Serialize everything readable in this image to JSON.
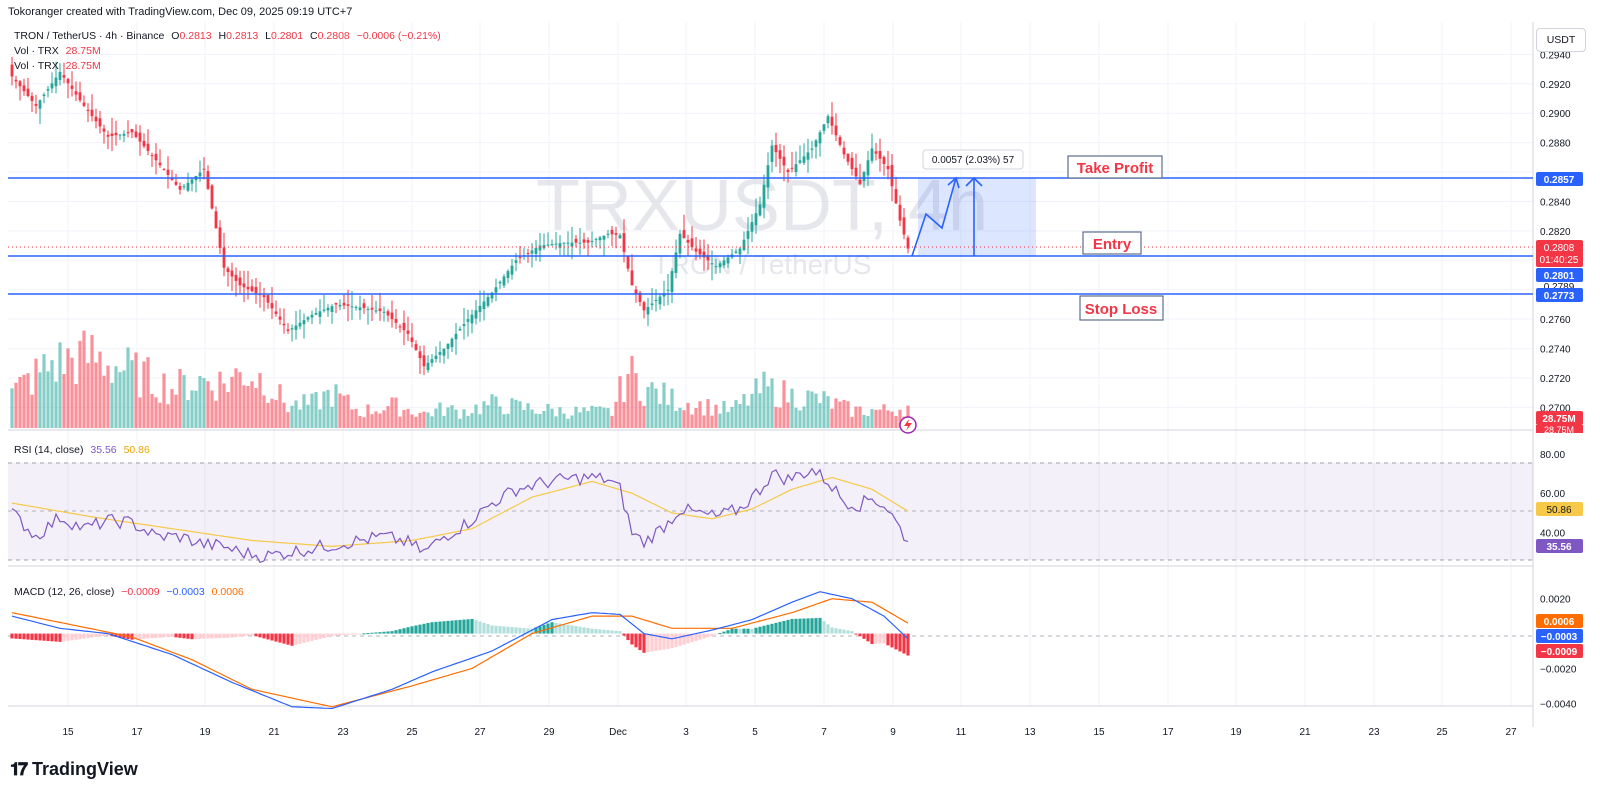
{
  "header": {
    "creator_text": "Tokoranger created with TradingView.com, Dec 09, 2025 09:19 UTC+7",
    "symbol_line": "TRON / TetherUS · 4h · Binance",
    "ohlc": {
      "o_label": "O",
      "o": "0.2813",
      "h_label": "H",
      "h": "0.2813",
      "l_label": "L",
      "l": "0.2801",
      "c_label": "C",
      "c": "0.2808",
      "change": "−0.0006 (−0.21%)"
    },
    "vol_line_1": "Vol · TRX",
    "vol_value_1": "28.75M",
    "vol_line_2": "Vol · TRX",
    "vol_value_2": "28.75M",
    "unit": "USDT"
  },
  "watermark": {
    "ticker": "TRXUSDT, 4h",
    "name": "TRON / TetherUS"
  },
  "annotations": {
    "measure": "0.0057 (2.03%) 57",
    "take_profit": "Take Profit",
    "entry": "Entry",
    "stop_loss": "Stop Loss"
  },
  "price_badges": {
    "take_profit": "0.2857",
    "last_price": "0.2808",
    "countdown": "01:40:25",
    "entry": "0.2801",
    "hidden": "0.2789",
    "stop_loss": "0.2773",
    "vol_1": "28.75M",
    "vol_2": "28.75M"
  },
  "rsi": {
    "label": "RSI (14, close)",
    "value": "35.56",
    "ma_value": "50.86",
    "axis": [
      "80.00",
      "60.00",
      "40.00"
    ]
  },
  "macd": {
    "label": "MACD (12, 26, close)",
    "hist": "−0.0009",
    "macd": "−0.0003",
    "signal": "0.0006",
    "axis": [
      "0.0020",
      "−0.0020",
      "−0.0040"
    ]
  },
  "branding": {
    "logo_text": "TradingView"
  },
  "colors": {
    "up": "#26a69a",
    "down": "#f23645",
    "line_blue": "#2962ff",
    "rsi_purple": "#7e57c2",
    "rsi_ma": "#f7c948",
    "macd_line": "#2962ff",
    "signal_line": "#ff6d00"
  },
  "chart_data": {
    "type": "candlestick",
    "x_axis_labels": [
      "15",
      "17",
      "19",
      "21",
      "23",
      "25",
      "27",
      "29",
      "Dec",
      "3",
      "5",
      "7",
      "9",
      "11",
      "13",
      "15",
      "17",
      "19",
      "21",
      "23",
      "25",
      "27"
    ],
    "y_axis_labels": [
      "0.2940",
      "0.2920",
      "0.2900",
      "0.2880",
      "0.2840",
      "0.2820",
      "0.2760",
      "0.2740",
      "0.2720",
      "0.2700"
    ],
    "ylim": [
      0.2686,
      0.2962
    ],
    "levels": {
      "take_profit": 0.2857,
      "entry": 0.2801,
      "stop_loss": 0.2773,
      "last": 0.2808
    },
    "anchors": [
      [
        0,
        0.2925
      ],
      [
        6,
        0.2905
      ],
      [
        12,
        0.2928
      ],
      [
        18,
        0.2905
      ],
      [
        24,
        0.2884
      ],
      [
        30,
        0.2887
      ],
      [
        36,
        0.2868
      ],
      [
        42,
        0.2848
      ],
      [
        48,
        0.2862
      ],
      [
        53,
        0.2795
      ],
      [
        57,
        0.2783
      ],
      [
        63,
        0.2775
      ],
      [
        69,
        0.2752
      ],
      [
        75,
        0.2763
      ],
      [
        81,
        0.277
      ],
      [
        87,
        0.2768
      ],
      [
        93,
        0.2765
      ],
      [
        99,
        0.275
      ],
      [
        103,
        0.2728
      ],
      [
        108,
        0.274
      ],
      [
        114,
        0.276
      ],
      [
        120,
        0.2778
      ],
      [
        126,
        0.28
      ],
      [
        132,
        0.281
      ],
      [
        138,
        0.2812
      ],
      [
        144,
        0.2812
      ],
      [
        149,
        0.2818
      ],
      [
        152,
        0.2817
      ],
      [
        155,
        0.2783
      ],
      [
        158,
        0.2766
      ],
      [
        164,
        0.278
      ],
      [
        167,
        0.2818
      ],
      [
        171,
        0.2806
      ],
      [
        176,
        0.2796
      ],
      [
        182,
        0.2808
      ],
      [
        187,
        0.2838
      ],
      [
        190,
        0.2878
      ],
      [
        194,
        0.286
      ],
      [
        200,
        0.2876
      ],
      [
        204,
        0.2898
      ],
      [
        208,
        0.2872
      ],
      [
        212,
        0.2852
      ],
      [
        215,
        0.2876
      ],
      [
        219,
        0.2862
      ],
      [
        222,
        0.2827
      ],
      [
        224,
        0.2808
      ]
    ],
    "volume": {
      "ylim": [
        0,
        80
      ],
      "anchors": [
        [
          0,
          22
        ],
        [
          10,
          40
        ],
        [
          20,
          45
        ],
        [
          30,
          35
        ],
        [
          35,
          30
        ],
        [
          40,
          25
        ],
        [
          48,
          30
        ],
        [
          53,
          28
        ],
        [
          58,
          35
        ],
        [
          63,
          30
        ],
        [
          69,
          14
        ],
        [
          75,
          15
        ],
        [
          80,
          22
        ],
        [
          87,
          10
        ],
        [
          95,
          14
        ],
        [
          103,
          9
        ],
        [
          108,
          12
        ],
        [
          112,
          10
        ],
        [
          120,
          15
        ],
        [
          130,
          12
        ],
        [
          140,
          10
        ],
        [
          150,
          10
        ],
        [
          154,
          35
        ],
        [
          158,
          25
        ],
        [
          165,
          18
        ],
        [
          170,
          15
        ],
        [
          180,
          11
        ],
        [
          188,
          25
        ],
        [
          195,
          20
        ],
        [
          202,
          18
        ],
        [
          210,
          11
        ],
        [
          218,
          11
        ],
        [
          224,
          13
        ]
      ]
    },
    "rsi": {
      "ylim": [
        20,
        85
      ],
      "upper": 70,
      "mid": 50,
      "lower": 30,
      "anchors": [
        [
          0,
          50
        ],
        [
          6,
          38
        ],
        [
          12,
          48
        ],
        [
          18,
          42
        ],
        [
          24,
          46
        ],
        [
          30,
          45
        ],
        [
          36,
          38
        ],
        [
          42,
          38
        ],
        [
          48,
          34
        ],
        [
          53,
          33
        ],
        [
          57,
          30
        ],
        [
          63,
          28
        ],
        [
          69,
          30
        ],
        [
          75,
          32
        ],
        [
          81,
          34
        ],
        [
          87,
          36
        ],
        [
          93,
          38
        ],
        [
          99,
          35
        ],
        [
          103,
          30
        ],
        [
          108,
          38
        ],
        [
          114,
          45
        ],
        [
          120,
          55
        ],
        [
          126,
          62
        ],
        [
          132,
          65
        ],
        [
          138,
          67
        ],
        [
          144,
          68
        ],
        [
          149,
          67
        ],
        [
          152,
          62
        ],
        [
          155,
          40
        ],
        [
          158,
          35
        ],
        [
          164,
          45
        ],
        [
          167,
          52
        ],
        [
          171,
          50
        ],
        [
          176,
          48
        ],
        [
          182,
          52
        ],
        [
          187,
          62
        ],
        [
          190,
          70
        ],
        [
          194,
          67
        ],
        [
          200,
          72
        ],
        [
          204,
          66
        ],
        [
          208,
          56
        ],
        [
          212,
          54
        ],
        [
          215,
          58
        ],
        [
          219,
          52
        ],
        [
          222,
          42
        ],
        [
          224,
          35.56
        ]
      ],
      "ma_anchors": [
        [
          0,
          55
        ],
        [
          20,
          48
        ],
        [
          40,
          42
        ],
        [
          60,
          36
        ],
        [
          80,
          33
        ],
        [
          100,
          36
        ],
        [
          115,
          42
        ],
        [
          130,
          58
        ],
        [
          145,
          66
        ],
        [
          155,
          60
        ],
        [
          165,
          50
        ],
        [
          175,
          47
        ],
        [
          185,
          52
        ],
        [
          195,
          62
        ],
        [
          205,
          68
        ],
        [
          215,
          62
        ],
        [
          224,
          50.86
        ]
      ]
    },
    "macd": {
      "ylim": [
        -0.0045,
        0.0025
      ],
      "macd_anchors": [
        [
          0,
          0.001
        ],
        [
          12,
          0.0003
        ],
        [
          24,
          0.0
        ],
        [
          40,
          -0.0012
        ],
        [
          55,
          -0.0028
        ],
        [
          70,
          -0.0042
        ],
        [
          80,
          -0.0043
        ],
        [
          95,
          -0.0032
        ],
        [
          105,
          -0.0022
        ],
        [
          120,
          -0.001
        ],
        [
          135,
          0.0008
        ],
        [
          145,
          0.0012
        ],
        [
          152,
          0.0011
        ],
        [
          158,
          0.0
        ],
        [
          165,
          -0.0003
        ],
        [
          175,
          0.0002
        ],
        [
          185,
          0.0008
        ],
        [
          195,
          0.0018
        ],
        [
          202,
          0.0024
        ],
        [
          210,
          0.002
        ],
        [
          218,
          0.001
        ],
        [
          224,
          -0.0003
        ]
      ],
      "signal_anchors": [
        [
          0,
          0.0012
        ],
        [
          15,
          0.0005
        ],
        [
          30,
          -0.0002
        ],
        [
          45,
          -0.0015
        ],
        [
          60,
          -0.0032
        ],
        [
          80,
          -0.0042
        ],
        [
          100,
          -0.003
        ],
        [
          115,
          -0.002
        ],
        [
          130,
          0.0
        ],
        [
          145,
          0.001
        ],
        [
          155,
          0.001
        ],
        [
          165,
          0.0003
        ],
        [
          180,
          0.0003
        ],
        [
          195,
          0.0012
        ],
        [
          205,
          0.002
        ],
        [
          215,
          0.0018
        ],
        [
          224,
          0.0006
        ]
      ]
    }
  }
}
